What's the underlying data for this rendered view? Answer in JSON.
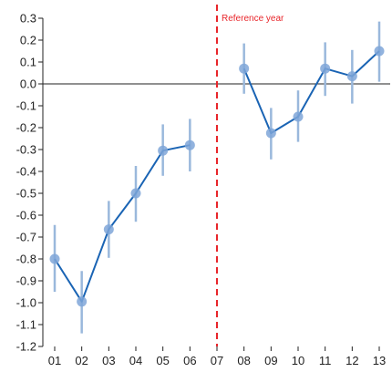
{
  "chart_data": {
    "type": "line",
    "title": "",
    "xlabel": "",
    "ylabel": "",
    "categories": [
      "01",
      "02",
      "03",
      "04",
      "05",
      "06",
      "07",
      "08",
      "09",
      "10",
      "11",
      "12",
      "13"
    ],
    "ylim": [
      -1.2,
      0.3
    ],
    "yticks": [
      0.3,
      0.2,
      0.1,
      0.0,
      -0.1,
      -0.2,
      -0.3,
      -0.4,
      -0.5,
      -0.6,
      -0.7,
      -0.8,
      -0.9,
      -1.0,
      -1.1,
      -1.2
    ],
    "ytick_labels": [
      "0.3",
      "0.2",
      "0.1",
      "0.0",
      "-0.1",
      "-0.2",
      "-0.3",
      "-0.4",
      "-0.5",
      "-0.6",
      "-0.7",
      "-0.8",
      "-0.9",
      "-1.0",
      "-1.1",
      "-1.2"
    ],
    "zero_line": true,
    "grid": false,
    "reference": {
      "category": "07",
      "label": "Reference year",
      "color": "#e8262b"
    },
    "segments": [
      {
        "points": [
          {
            "x": "01",
            "y": -0.8,
            "lower": -0.95,
            "upper": -0.645
          },
          {
            "x": "02",
            "y": -0.995,
            "lower": -1.14,
            "upper": -0.855
          },
          {
            "x": "03",
            "y": -0.665,
            "lower": -0.795,
            "upper": -0.535
          },
          {
            "x": "04",
            "y": -0.5,
            "lower": -0.63,
            "upper": -0.375
          },
          {
            "x": "05",
            "y": -0.305,
            "lower": -0.42,
            "upper": -0.185
          },
          {
            "x": "06",
            "y": -0.28,
            "lower": -0.4,
            "upper": -0.16
          }
        ]
      },
      {
        "points": [
          {
            "x": "08",
            "y": 0.07,
            "lower": -0.045,
            "upper": 0.185
          },
          {
            "x": "09",
            "y": -0.225,
            "lower": -0.345,
            "upper": -0.11
          },
          {
            "x": "10",
            "y": -0.15,
            "lower": -0.265,
            "upper": -0.03
          },
          {
            "x": "11",
            "y": 0.07,
            "lower": -0.055,
            "upper": 0.19
          },
          {
            "x": "12",
            "y": 0.035,
            "lower": -0.09,
            "upper": 0.155
          },
          {
            "x": "13",
            "y": 0.15,
            "lower": 0.01,
            "upper": 0.285
          }
        ]
      }
    ],
    "colors": {
      "line": "#1a64b4",
      "marker": "#7fa6d8",
      "errorbar": "#9ab8dc",
      "axis": "#222222",
      "zero_line": "#222222"
    }
  }
}
